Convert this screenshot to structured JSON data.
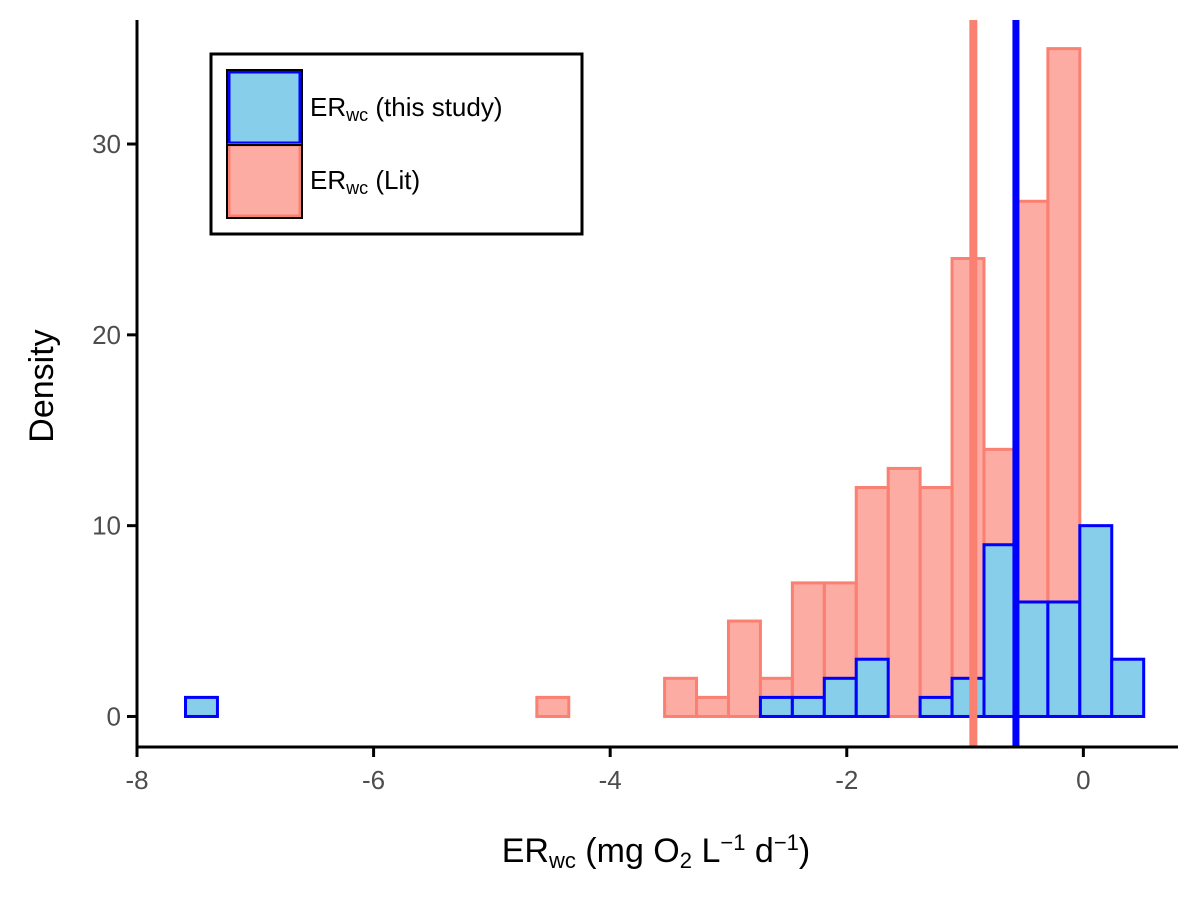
{
  "chart_data": {
    "type": "histogram",
    "xlabel": {
      "base": "ER",
      "sub": "wc",
      "rest_prefix": " (mg O",
      "o_sub": "2",
      "l_part": " L",
      "l_sup": "−1",
      "d_part": " d",
      "d_sup": "−1",
      "close": ")"
    },
    "ylabel": "Density",
    "xlim": [
      -8,
      0.8
    ],
    "ylim": [
      -1.6,
      36.5
    ],
    "x_ticks": [
      -8,
      -6,
      -4,
      -2,
      0
    ],
    "x_tick_labels": [
      "-8",
      "-6",
      "-4",
      "-2",
      "0"
    ],
    "y_ticks": [
      0,
      10,
      20,
      30
    ],
    "y_tick_labels": [
      "0",
      "10",
      "20",
      "30"
    ],
    "bin_width": 0.27,
    "grid": false,
    "legend_position": "top-left",
    "series": [
      {
        "key": "lit",
        "name_base": "ER",
        "name_sub": "wc",
        "name_rest": " (Lit)",
        "fill": "#fa8072",
        "fill_opacity": 0.65,
        "stroke": "#fa8072",
        "bins": [
          [
            -4.62,
            1
          ],
          [
            -3.54,
            2
          ],
          [
            -3.27,
            1
          ],
          [
            -3.0,
            5
          ],
          [
            -2.73,
            2
          ],
          [
            -2.46,
            7
          ],
          [
            -2.19,
            7
          ],
          [
            -1.92,
            12
          ],
          [
            -1.65,
            13
          ],
          [
            -1.38,
            12
          ],
          [
            -1.11,
            24
          ],
          [
            -0.84,
            14
          ],
          [
            -0.57,
            27
          ],
          [
            -0.3,
            35
          ]
        ],
        "mean": -0.93
      },
      {
        "key": "study",
        "name_base": "ER",
        "name_sub": "wc",
        "name_rest": " (this study)",
        "fill": "#87ceeb",
        "fill_opacity": 1,
        "stroke": "#0000ff",
        "bins": [
          [
            -7.59,
            1
          ],
          [
            -7.32,
            0
          ],
          [
            -7.05,
            0
          ],
          [
            -6.78,
            0
          ],
          [
            -6.51,
            0
          ],
          [
            -6.24,
            0
          ],
          [
            -5.97,
            0
          ],
          [
            -5.7,
            0
          ],
          [
            -5.43,
            0
          ],
          [
            -5.16,
            0
          ],
          [
            -4.89,
            0
          ],
          [
            -4.62,
            0
          ],
          [
            -4.35,
            0
          ],
          [
            -4.08,
            0
          ],
          [
            -3.81,
            0
          ],
          [
            -3.54,
            0
          ],
          [
            -3.27,
            0
          ],
          [
            -3.0,
            0
          ],
          [
            -2.73,
            1
          ],
          [
            -2.46,
            1
          ],
          [
            -2.19,
            2
          ],
          [
            -1.92,
            3
          ],
          [
            -1.65,
            0
          ],
          [
            -1.38,
            1
          ],
          [
            -1.11,
            2
          ],
          [
            -0.84,
            9
          ],
          [
            -0.57,
            6
          ],
          [
            -0.3,
            6
          ],
          [
            -0.03,
            10
          ],
          [
            0.24,
            3
          ]
        ],
        "mean": -0.57
      }
    ],
    "mean_line_colors": {
      "lit": "#fa8072",
      "study": "#0000ff"
    }
  }
}
